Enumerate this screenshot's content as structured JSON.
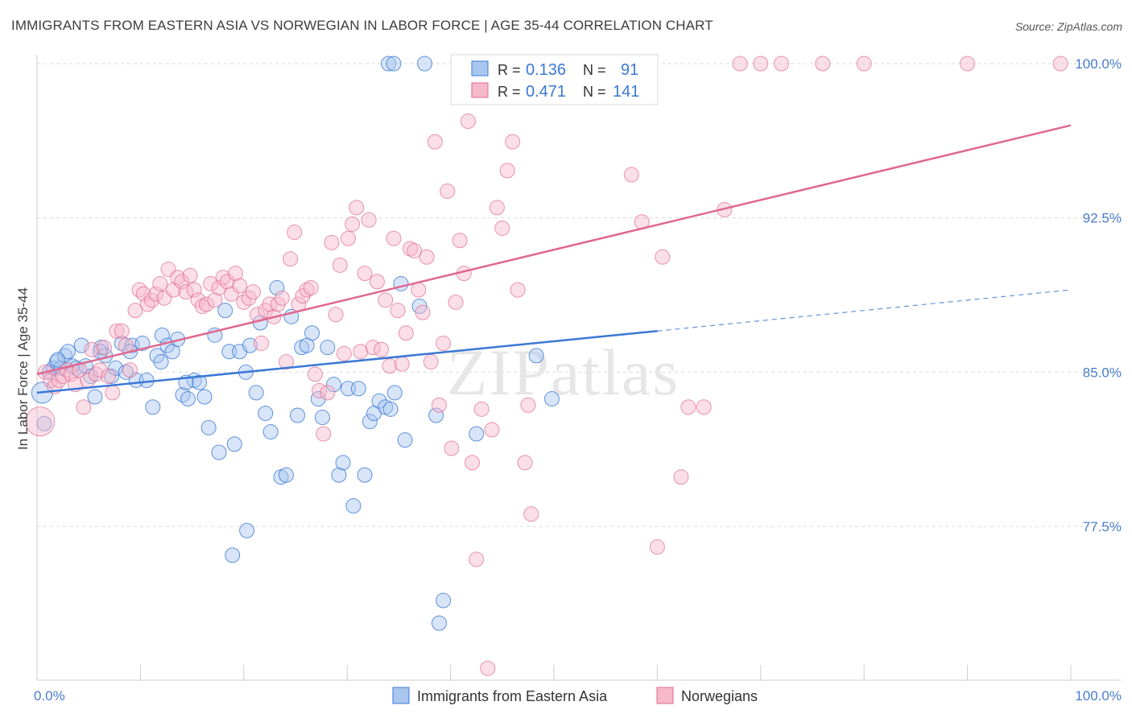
{
  "title": "IMMIGRANTS FROM EASTERN ASIA VS NORWEGIAN IN LABOR FORCE | AGE 35-44 CORRELATION CHART",
  "source": "Source: ZipAtlas.com",
  "watermark": "ZIPatlas",
  "colors": {
    "blue": "#3a78d6",
    "blue_fill": "#a9c6ef",
    "pink": "#e0688f",
    "pink_fill": "#f6b8cb",
    "grid": "#d9d9d9",
    "tick": "#4a7cc9"
  },
  "legend": {
    "rows": [
      {
        "r_label": "R =",
        "r_value": "0.136",
        "n_label": "N =",
        "n_value": "91"
      },
      {
        "r_label": "R =",
        "r_value": "0.471",
        "n_label": "N =",
        "n_value": "141"
      }
    ]
  },
  "bottom_legend": [
    "Immigrants from Eastern Asia",
    "Norwegians"
  ],
  "chart_data": {
    "type": "scatter",
    "title": "IMMIGRANTS FROM EASTERN ASIA VS NORWEGIAN IN LABOR FORCE | AGE 35-44 CORRELATION CHART",
    "xlabel": "",
    "ylabel": "In Labor Force | Age 35-44",
    "xlim": [
      0,
      100
    ],
    "ylim": [
      70.0,
      100.6
    ],
    "x_tick_labels": [
      "0.0%",
      "100.0%"
    ],
    "y_ticks": [
      77.5,
      85.0,
      92.5,
      100.0
    ],
    "y_tick_labels": [
      "77.5%",
      "85.0%",
      "92.5%",
      "100.0%"
    ],
    "grid": true,
    "legend_position": "top-center",
    "series": [
      {
        "name": "Immigrants from Eastern Asia",
        "color": "#3a78d6",
        "r": 0.136,
        "n": 91,
        "trend": {
          "x0": 0,
          "y0": 84.0,
          "x1": 60,
          "y1": 87.0,
          "dashed_to_x": 100,
          "dashed_to_y": 89.0
        },
        "points": [
          [
            0.5,
            84.0
          ],
          [
            0.7,
            82.5
          ],
          [
            1.2,
            85.0
          ],
          [
            1.6,
            85.2
          ],
          [
            1.9,
            85.5
          ],
          [
            2.3,
            85.2
          ],
          [
            2.7,
            85.8
          ],
          [
            3.0,
            86.0
          ],
          [
            3.4,
            85.3
          ],
          [
            3.8,
            85.2
          ],
          [
            4.3,
            86.3
          ],
          [
            4.7,
            85.3
          ],
          [
            5.2,
            84.8
          ],
          [
            5.6,
            83.8
          ],
          [
            6.2,
            86.2
          ],
          [
            6.6,
            85.8
          ],
          [
            7.2,
            84.8
          ],
          [
            7.6,
            85.2
          ],
          [
            8.2,
            86.4
          ],
          [
            8.6,
            85.0
          ],
          [
            9.2,
            86.3
          ],
          [
            9.6,
            84.6
          ],
          [
            10.2,
            86.4
          ],
          [
            10.6,
            84.6
          ],
          [
            11.2,
            83.3
          ],
          [
            11.6,
            85.8
          ],
          [
            12.1,
            86.8
          ],
          [
            12.6,
            86.3
          ],
          [
            13.1,
            86.0
          ],
          [
            13.6,
            86.6
          ],
          [
            14.1,
            83.9
          ],
          [
            14.6,
            83.7
          ],
          [
            15.2,
            84.6
          ],
          [
            15.7,
            84.5
          ],
          [
            16.2,
            83.8
          ],
          [
            16.6,
            82.3
          ],
          [
            17.2,
            86.8
          ],
          [
            17.6,
            81.1
          ],
          [
            18.2,
            88.0
          ],
          [
            18.6,
            86.0
          ],
          [
            19.1,
            81.5
          ],
          [
            19.6,
            86.0
          ],
          [
            20.2,
            85.0
          ],
          [
            20.6,
            86.3
          ],
          [
            21.2,
            84.0
          ],
          [
            21.6,
            87.4
          ],
          [
            22.1,
            83.0
          ],
          [
            22.6,
            82.1
          ],
          [
            23.2,
            89.1
          ],
          [
            23.6,
            79.9
          ],
          [
            24.1,
            80.0
          ],
          [
            24.6,
            87.7
          ],
          [
            25.2,
            82.9
          ],
          [
            25.6,
            86.2
          ],
          [
            26.1,
            86.3
          ],
          [
            26.6,
            86.9
          ],
          [
            27.2,
            83.7
          ],
          [
            27.6,
            82.8
          ],
          [
            28.1,
            86.2
          ],
          [
            28.7,
            84.4
          ],
          [
            29.2,
            80.0
          ],
          [
            29.6,
            80.6
          ],
          [
            30.1,
            84.2
          ],
          [
            30.6,
            78.5
          ],
          [
            31.1,
            84.2
          ],
          [
            31.7,
            80.0
          ],
          [
            32.2,
            82.6
          ],
          [
            32.6,
            83.0
          ],
          [
            33.1,
            83.6
          ],
          [
            33.7,
            83.3
          ],
          [
            34.2,
            83.2
          ],
          [
            34.6,
            84.0
          ],
          [
            35.2,
            89.3
          ],
          [
            35.6,
            81.7
          ],
          [
            34.0,
            100.0
          ],
          [
            34.5,
            100.0
          ],
          [
            37.5,
            100.0
          ],
          [
            37.0,
            88.2
          ],
          [
            38.6,
            82.9
          ],
          [
            38.9,
            72.8
          ],
          [
            39.3,
            73.9
          ],
          [
            42.5,
            82.0
          ],
          [
            48.3,
            85.8
          ],
          [
            49.8,
            83.7
          ],
          [
            18.9,
            76.1
          ],
          [
            20.3,
            77.3
          ],
          [
            9.0,
            86.0
          ],
          [
            6.1,
            86.0
          ],
          [
            2.0,
            85.6
          ],
          [
            12.0,
            85.5
          ],
          [
            14.4,
            84.5
          ]
        ]
      },
      {
        "name": "Norwegians",
        "color": "#e0688f",
        "r": 0.471,
        "n": 141,
        "trend": {
          "x0": 0,
          "y0": 84.9,
          "x1": 100,
          "y1": 97.0
        },
        "points": [
          [
            0.3,
            82.6
          ],
          [
            0.8,
            85.0
          ],
          [
            1.3,
            84.6
          ],
          [
            1.7,
            84.3
          ],
          [
            2.1,
            84.6
          ],
          [
            2.5,
            84.8
          ],
          [
            2.9,
            85.1
          ],
          [
            3.3,
            84.9
          ],
          [
            3.7,
            84.4
          ],
          [
            4.1,
            85.1
          ],
          [
            4.5,
            83.3
          ],
          [
            4.9,
            84.6
          ],
          [
            5.3,
            86.1
          ],
          [
            5.7,
            84.9
          ],
          [
            6.1,
            85.1
          ],
          [
            6.5,
            86.2
          ],
          [
            6.9,
            84.8
          ],
          [
            7.3,
            84.0
          ],
          [
            7.7,
            87.0
          ],
          [
            8.2,
            87.0
          ],
          [
            8.6,
            86.3
          ],
          [
            9.0,
            85.1
          ],
          [
            9.5,
            88.0
          ],
          [
            9.9,
            89.0
          ],
          [
            10.3,
            88.8
          ],
          [
            10.7,
            88.3
          ],
          [
            11.1,
            88.5
          ],
          [
            11.5,
            88.8
          ],
          [
            11.9,
            89.3
          ],
          [
            12.3,
            88.6
          ],
          [
            12.7,
            90.0
          ],
          [
            13.2,
            89.0
          ],
          [
            13.6,
            89.6
          ],
          [
            14.0,
            89.4
          ],
          [
            14.4,
            88.9
          ],
          [
            14.8,
            89.7
          ],
          [
            15.2,
            89.0
          ],
          [
            15.6,
            88.5
          ],
          [
            16.0,
            88.2
          ],
          [
            16.4,
            88.3
          ],
          [
            16.8,
            89.3
          ],
          [
            17.2,
            88.5
          ],
          [
            17.6,
            89.1
          ],
          [
            18.0,
            89.6
          ],
          [
            18.4,
            89.4
          ],
          [
            18.8,
            88.8
          ],
          [
            19.2,
            89.8
          ],
          [
            19.6,
            89.2
          ],
          [
            20.0,
            88.4
          ],
          [
            20.5,
            88.6
          ],
          [
            20.9,
            88.9
          ],
          [
            21.3,
            87.8
          ],
          [
            21.7,
            86.4
          ],
          [
            22.1,
            88.0
          ],
          [
            22.5,
            88.3
          ],
          [
            22.9,
            87.7
          ],
          [
            23.3,
            88.3
          ],
          [
            23.7,
            88.6
          ],
          [
            24.1,
            85.5
          ],
          [
            24.5,
            90.5
          ],
          [
            24.9,
            91.8
          ],
          [
            25.3,
            88.3
          ],
          [
            25.7,
            88.7
          ],
          [
            26.1,
            89.0
          ],
          [
            26.5,
            89.1
          ],
          [
            26.9,
            84.9
          ],
          [
            27.3,
            84.1
          ],
          [
            27.7,
            82.0
          ],
          [
            28.1,
            84.0
          ],
          [
            28.5,
            91.3
          ],
          [
            28.9,
            87.8
          ],
          [
            29.3,
            90.2
          ],
          [
            29.7,
            85.9
          ],
          [
            30.1,
            91.5
          ],
          [
            30.5,
            92.2
          ],
          [
            30.9,
            93.0
          ],
          [
            31.3,
            86.0
          ],
          [
            31.7,
            89.8
          ],
          [
            32.1,
            92.4
          ],
          [
            32.5,
            86.2
          ],
          [
            32.9,
            89.4
          ],
          [
            33.3,
            86.1
          ],
          [
            33.7,
            88.5
          ],
          [
            34.1,
            85.3
          ],
          [
            34.5,
            91.5
          ],
          [
            34.9,
            88.0
          ],
          [
            35.3,
            85.4
          ],
          [
            35.7,
            86.9
          ],
          [
            36.1,
            91.0
          ],
          [
            36.5,
            90.9
          ],
          [
            36.9,
            89.0
          ],
          [
            37.3,
            87.9
          ],
          [
            37.7,
            90.6
          ],
          [
            38.1,
            85.5
          ],
          [
            38.5,
            96.2
          ],
          [
            38.9,
            83.4
          ],
          [
            39.3,
            86.4
          ],
          [
            39.7,
            93.8
          ],
          [
            40.1,
            81.3
          ],
          [
            40.5,
            88.4
          ],
          [
            40.9,
            91.4
          ],
          [
            41.3,
            89.8
          ],
          [
            41.7,
            97.2
          ],
          [
            42.1,
            80.6
          ],
          [
            42.5,
            75.9
          ],
          [
            43.0,
            83.2
          ],
          [
            43.6,
            70.6
          ],
          [
            44.0,
            82.2
          ],
          [
            44.5,
            93.0
          ],
          [
            45.0,
            92.0
          ],
          [
            45.5,
            94.8
          ],
          [
            46.0,
            96.2
          ],
          [
            46.5,
            89.0
          ],
          [
            47.2,
            80.6
          ],
          [
            47.8,
            78.1
          ],
          [
            48.2,
            100.0
          ],
          [
            48.6,
            100.0
          ],
          [
            49.2,
            100.0
          ],
          [
            50.5,
            100.0
          ],
          [
            51.0,
            100.0
          ],
          [
            52.0,
            100.0
          ],
          [
            52.5,
            100.0
          ],
          [
            53.5,
            100.0
          ],
          [
            55.0,
            100.0
          ],
          [
            55.5,
            100.0
          ],
          [
            57.5,
            94.6
          ],
          [
            58.5,
            92.3
          ],
          [
            60.0,
            76.5
          ],
          [
            62.3,
            79.9
          ],
          [
            63.0,
            83.3
          ],
          [
            64.5,
            83.3
          ],
          [
            66.5,
            92.9
          ],
          [
            68.0,
            100.0
          ],
          [
            70.0,
            100.0
          ],
          [
            72.0,
            100.0
          ],
          [
            76.0,
            100.0
          ],
          [
            80.0,
            100.0
          ],
          [
            90.0,
            100.0
          ],
          [
            99.0,
            100.0
          ],
          [
            60.5,
            90.6
          ],
          [
            47.5,
            83.4
          ]
        ]
      }
    ]
  }
}
